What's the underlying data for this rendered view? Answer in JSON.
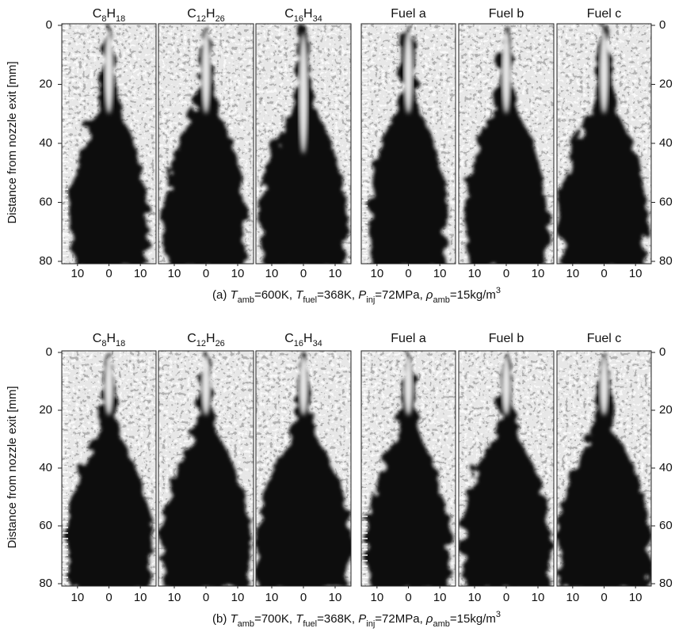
{
  "panels": [
    {
      "titles": [
        [
          {
            "text": "C"
          },
          {
            "text": "8",
            "style": "sub"
          },
          {
            "text": "H"
          },
          {
            "text": "18",
            "style": "sub"
          }
        ],
        [
          {
            "text": "C"
          },
          {
            "text": "12",
            "style": "sub"
          },
          {
            "text": "H"
          },
          {
            "text": "26",
            "style": "sub"
          }
        ],
        [
          {
            "text": "C"
          },
          {
            "text": "16",
            "style": "sub"
          },
          {
            "text": "H"
          },
          {
            "text": "34",
            "style": "sub"
          }
        ],
        [
          {
            "text": "Fuel a"
          }
        ],
        [
          {
            "text": "Fuel b"
          }
        ],
        [
          {
            "text": "Fuel c"
          }
        ]
      ],
      "caption": [
        {
          "text": "(a) "
        },
        {
          "text": "T",
          "style": "italic"
        },
        {
          "text": "amb",
          "style": "sub"
        },
        {
          "text": "=600K, "
        },
        {
          "text": "T",
          "style": "italic"
        },
        {
          "text": "fuel",
          "style": "sub"
        },
        {
          "text": "=368K, "
        },
        {
          "text": "P",
          "style": "italic"
        },
        {
          "text": "inj",
          "style": "sub"
        },
        {
          "text": "=72MPa, "
        },
        {
          "text": "ρ",
          "style": "italic"
        },
        {
          "text": "amb",
          "style": "sub"
        },
        {
          "text": "=15kg/m"
        },
        {
          "text": "3",
          "style": "sup"
        }
      ],
      "y_axis_label": "Distance from nozzle exit [mm]",
      "ylim": [
        0,
        80
      ],
      "yticks": [
        0,
        20,
        40,
        60,
        80
      ],
      "xlim": [
        -15,
        15
      ],
      "xticks": [
        {
          "value": -10,
          "label": "10"
        },
        0,
        10
      ]
    },
    {
      "titles": [
        [
          {
            "text": "C"
          },
          {
            "text": "8",
            "style": "sub"
          },
          {
            "text": "H"
          },
          {
            "text": "18",
            "style": "sub"
          }
        ],
        [
          {
            "text": "C"
          },
          {
            "text": "12",
            "style": "sub"
          },
          {
            "text": "H"
          },
          {
            "text": "26",
            "style": "sub"
          }
        ],
        [
          {
            "text": "C"
          },
          {
            "text": "16",
            "style": "sub"
          },
          {
            "text": "H"
          },
          {
            "text": "34",
            "style": "sub"
          }
        ],
        [
          {
            "text": "Fuel a"
          }
        ],
        [
          {
            "text": "Fuel b"
          }
        ],
        [
          {
            "text": "Fuel c"
          }
        ]
      ],
      "caption": [
        {
          "text": "(b) "
        },
        {
          "text": "T",
          "style": "italic"
        },
        {
          "text": "amb",
          "style": "sub"
        },
        {
          "text": "=700K, "
        },
        {
          "text": "T",
          "style": "italic"
        },
        {
          "text": "fuel",
          "style": "sub"
        },
        {
          "text": "=368K, "
        },
        {
          "text": "P",
          "style": "italic"
        },
        {
          "text": "inj",
          "style": "sub"
        },
        {
          "text": "=72MPa, "
        },
        {
          "text": "ρ",
          "style": "italic"
        },
        {
          "text": "amb",
          "style": "sub"
        },
        {
          "text": "=15kg/m"
        },
        {
          "text": "3",
          "style": "sup"
        }
      ],
      "y_axis_label": "Distance from nozzle exit [mm]",
      "ylim": [
        0,
        80
      ],
      "yticks": [
        0,
        20,
        40,
        60,
        80
      ],
      "xlim": [
        -15,
        15
      ],
      "xticks": [
        {
          "value": -10,
          "label": "10"
        },
        0,
        10
      ]
    }
  ]
}
